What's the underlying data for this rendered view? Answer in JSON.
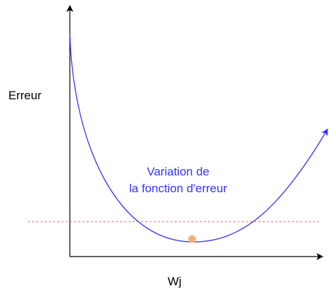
{
  "axes": {
    "y_label": "Erreur",
    "x_label": "Wj"
  },
  "curve": {
    "label_line1": "Variation de",
    "label_line2": "la fonction d'erreur"
  },
  "colors": {
    "axis": "#000000",
    "curve": "#3333ff",
    "threshold": "#e06666",
    "minimum_point": "#f4b07a"
  }
}
